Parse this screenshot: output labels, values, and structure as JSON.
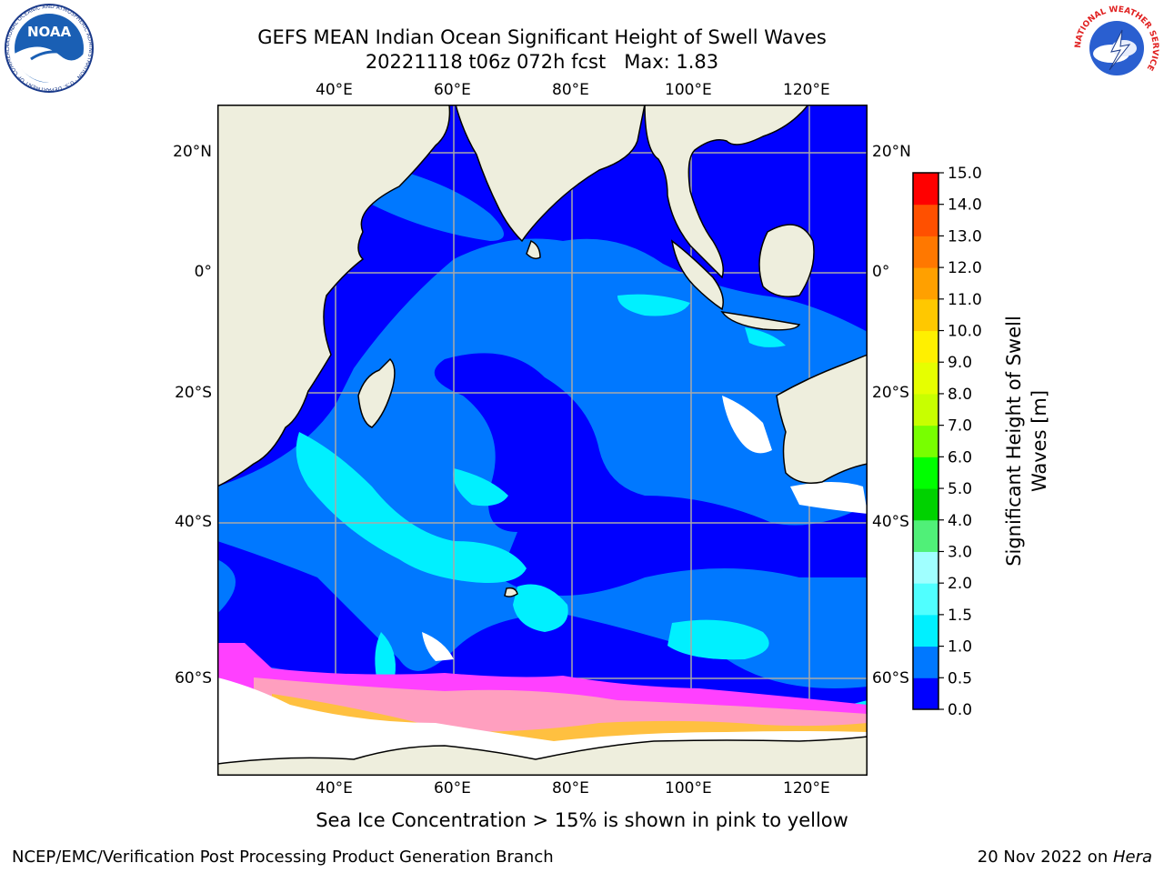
{
  "header": {
    "title_line1": "GEFS MEAN Indian Ocean Significant Height of Swell Waves",
    "title_line2": "20221118 t06z 072h fcst   Max: 1.83"
  },
  "logos": {
    "noaa_text": "NOAA",
    "noaa_ring_text": "NATIONAL OCEANIC AND ATMOSPHERIC ADMINISTRATION · U.S. DEPARTMENT OF COMMERCE",
    "nws_ring_text": "NATIONAL WEATHER SERVICE"
  },
  "map": {
    "lon_ticks": [
      "40°E",
      "60°E",
      "80°E",
      "100°E",
      "120°E"
    ],
    "lat_ticks": [
      "20°N",
      "0°",
      "20°S",
      "40°S",
      "60°S"
    ],
    "colors": {
      "land": "#EEEEDD",
      "ocean_0_05": "#0000FF",
      "ocean_05_10": "#0078FF",
      "ocean_10_15": "#00F0FF",
      "ocean_15_20": "#50FFFF",
      "ice_low": "#FF40FF",
      "ice_mid": "#FF9FBF",
      "ice_high": "#FFC040",
      "no_data": "#FFFFFF",
      "grid": "#A9A9A9"
    }
  },
  "colorbar": {
    "label_line1": "Significant Height of Swell",
    "label_line2": "Waves [m]",
    "ticks": [
      "0.0",
      "0.5",
      "1.0",
      "1.5",
      "2.0",
      "3.0",
      "4.0",
      "5.0",
      "6.0",
      "7.0",
      "8.0",
      "9.0",
      "10.0",
      "11.0",
      "12.0",
      "13.0",
      "14.0",
      "15.0"
    ],
    "segment_colors": [
      "#0000FF",
      "#0078FF",
      "#00F0FF",
      "#50FFFF",
      "#A0FFFF",
      "#50F078",
      "#00D200",
      "#00FF00",
      "#78FF00",
      "#C8FF00",
      "#E6FF00",
      "#FFF000",
      "#FFC800",
      "#FFA000",
      "#FF7800",
      "#FF5000",
      "#FF0000"
    ]
  },
  "footer": {
    "ice_note": "Sea Ice Concentration > 15% is shown in pink to yellow",
    "producer": "NCEP/EMC/Verification Post Processing Product Generation Branch",
    "date_prefix": "20 Nov 2022 on ",
    "machine": "Hera"
  }
}
